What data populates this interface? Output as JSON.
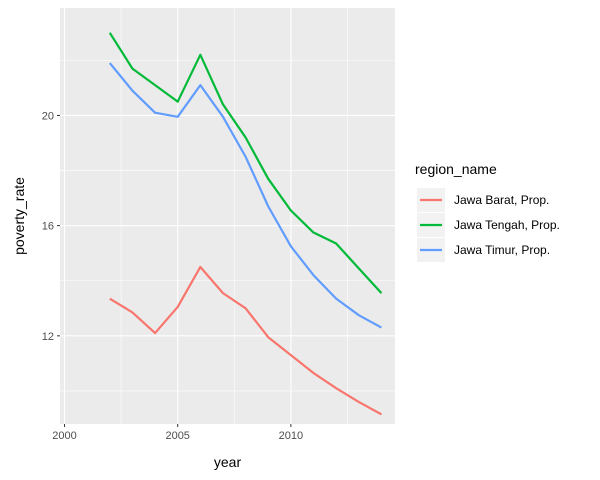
{
  "chart_data": {
    "type": "line",
    "xlabel": "year",
    "ylabel": "poverty_rate",
    "xlim": [
      1999.8,
      2014.6
    ],
    "ylim": [
      8.8,
      23.9
    ],
    "x_ticks": [
      2000,
      2005,
      2010
    ],
    "x_tick_labels": [
      "2000",
      "2005",
      "2010"
    ],
    "y_ticks": [
      12,
      16,
      20
    ],
    "y_tick_labels": [
      "12",
      "16",
      "20"
    ],
    "grid": true,
    "legend": {
      "title": "region_name",
      "position": "right"
    },
    "x": [
      2002,
      2003,
      2004,
      2005,
      2006,
      2007,
      2008,
      2009,
      2010,
      2011,
      2012,
      2013,
      2014
    ],
    "series": [
      {
        "name": "Jawa Barat, Prop.",
        "color": "#F8766D",
        "values": [
          13.35,
          12.85,
          12.1,
          13.05,
          14.5,
          13.55,
          13.0,
          11.95,
          11.3,
          10.65,
          10.1,
          9.6,
          9.15
        ]
      },
      {
        "name": "Jawa Tengah, Prop.",
        "color": "#00BA38",
        "values": [
          23.0,
          21.7,
          21.1,
          20.5,
          22.2,
          20.4,
          19.2,
          17.7,
          16.55,
          15.75,
          15.35,
          14.45,
          13.55
        ]
      },
      {
        "name": "Jawa Timur, Prop.",
        "color": "#619CFF",
        "values": [
          21.9,
          20.9,
          20.1,
          19.95,
          21.1,
          19.95,
          18.5,
          16.7,
          15.25,
          14.2,
          13.35,
          12.75,
          12.3
        ]
      }
    ]
  }
}
